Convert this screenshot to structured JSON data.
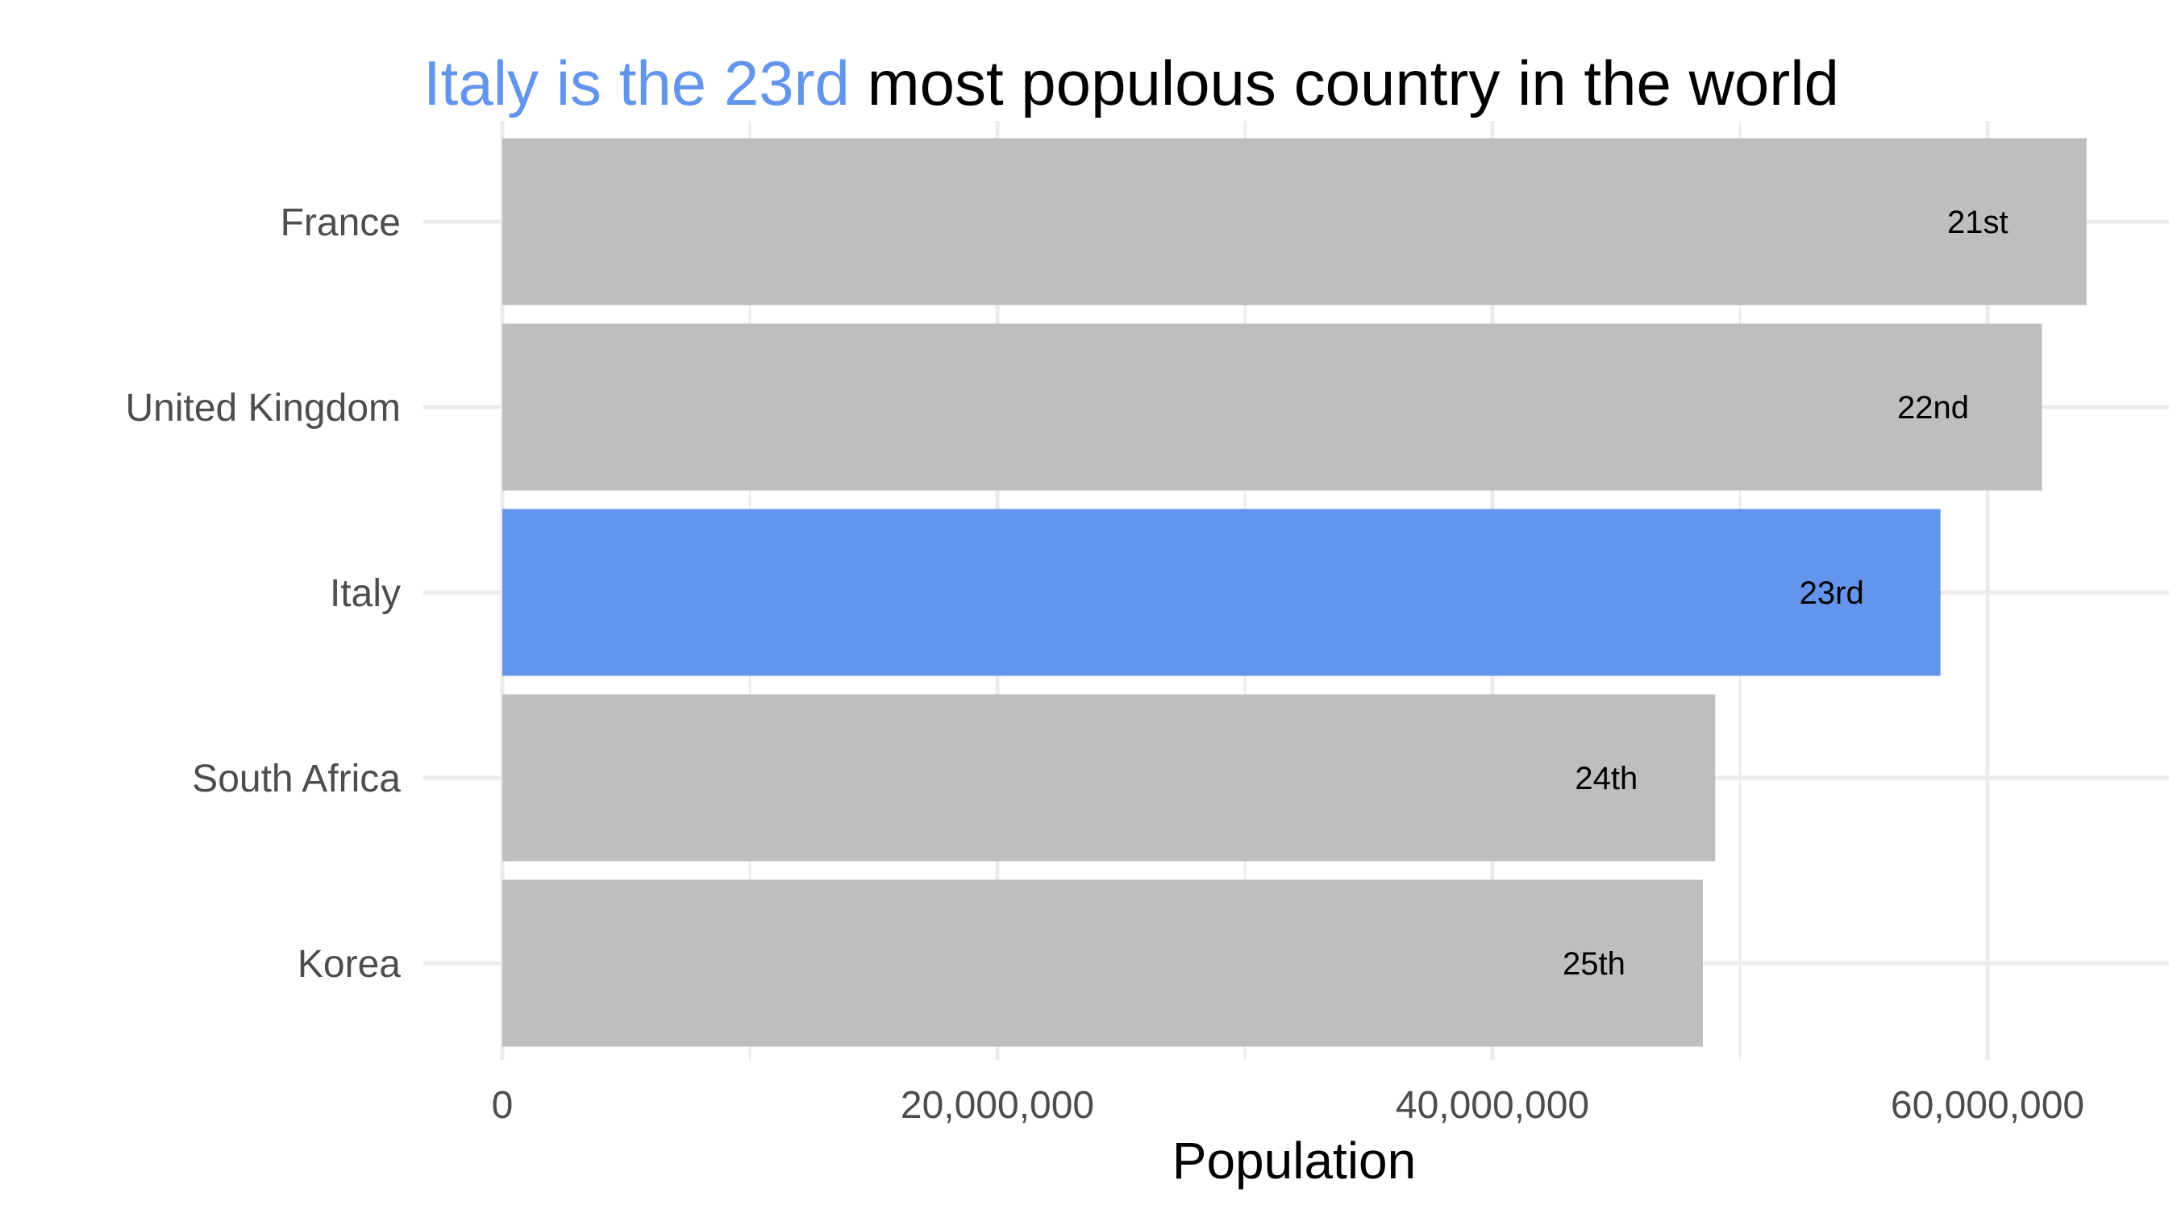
{
  "chart_data": {
    "type": "bar",
    "orientation": "horizontal",
    "title_highlight": "Italy is the 23rd",
    "title_rest": " most populous country in the world",
    "xlabel": "Population",
    "ylabel": "",
    "xlim": [
      0,
      67000000
    ],
    "x_ticks": [
      0,
      20000000,
      40000000,
      60000000
    ],
    "x_tick_labels": [
      "0",
      "20,000,000",
      "40,000,000",
      "60,000,000"
    ],
    "grid": true,
    "categories": [
      "France",
      "United Kingdom",
      "Italy",
      "South Africa",
      "Korea"
    ],
    "values": [
      64000000,
      62200000,
      58100000,
      49000000,
      48500000
    ],
    "bar_labels": [
      "21st",
      "22nd",
      "23rd",
      "24th",
      "25th"
    ],
    "highlight": "Italy",
    "colors": {
      "bar_default": "#bebebe",
      "bar_highlight": "#6495ed",
      "title_highlight": "#6495ed",
      "title_rest": "#000000",
      "grid": "#ebebeb"
    }
  }
}
